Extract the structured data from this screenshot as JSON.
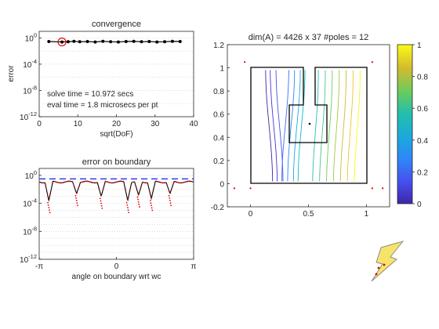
{
  "chart_data": [
    {
      "type": "scatter",
      "title": "convergence",
      "xlabel": "sqrt(DoF)",
      "ylabel": "error",
      "xlim": [
        0,
        40
      ],
      "ylim_log10": [
        -12,
        1
      ],
      "xticks": [
        "0",
        "10",
        "20",
        "30",
        "40"
      ],
      "yticks": [
        "10^0",
        "10^-4",
        "10^-8",
        "10^-12"
      ],
      "grid": "horizontal dotted",
      "x": [
        2.5,
        5.9,
        7.5,
        9.0,
        10.5,
        12.5,
        14.5,
        16.5,
        18.5,
        20.5,
        22.5,
        24.5,
        26.5,
        28.5,
        30.5,
        32.5,
        34.5,
        36.5
      ],
      "y": [
        0.28,
        0.24,
        0.26,
        0.3,
        0.26,
        0.28,
        0.24,
        0.3,
        0.26,
        0.24,
        0.28,
        0.3,
        0.26,
        0.28,
        0.24,
        0.26,
        0.3,
        0.28
      ],
      "highlight_index": 1,
      "annotations": [
        "solve time = 10.972 secs",
        "eval time =  1.8 microsecs per pt"
      ]
    },
    {
      "type": "line",
      "title": "error on boundary",
      "xlabel": "angle on boundary wrt wc",
      "xlim": [
        -3.1416,
        3.1416
      ],
      "ylim_log10": [
        -12,
        1
      ],
      "xticks": [
        "-π",
        "0",
        "π"
      ],
      "yticks": [
        "10^0",
        "10^-4",
        "10^-8",
        "10^-12"
      ],
      "threshold_log10": -0.5,
      "grid": "horizontal dotted",
      "dips": [
        {
          "x": -2.75,
          "min_log10": -3.6
        },
        {
          "x": -1.62,
          "min_log10": -2.6
        },
        {
          "x": -0.62,
          "min_log10": -3.0
        },
        {
          "x": 0.46,
          "min_log10": -3.6
        },
        {
          "x": 0.9,
          "min_log10": -2.8
        },
        {
          "x": 1.42,
          "min_log10": -3.3
        },
        {
          "x": 2.18,
          "min_log10": -2.6
        }
      ]
    },
    {
      "type": "heatmap",
      "title": "dim(A) = 4426 x 37  #poles = 12",
      "xlim": [
        -0.2,
        1.2
      ],
      "ylim": [
        -0.2,
        1.2
      ],
      "xticks": [
        "0",
        "0.5",
        "1"
      ],
      "yticks": [
        "-0.2",
        "0",
        "0.2",
        "0.4",
        "0.6",
        "0.8",
        "1",
        "1.2"
      ],
      "colorbar": {
        "min": 0,
        "max": 1,
        "ticks": [
          "0",
          "0.2",
          "0.4",
          "0.6",
          "0.8",
          "1"
        ]
      },
      "poles": [
        [
          -0.05,
          1.05
        ],
        [
          1.05,
          1.05
        ],
        [
          -0.05,
          -0.05
        ],
        [
          1.05,
          -0.05
        ],
        [
          -0.14,
          -0.04
        ],
        [
          1.14,
          -0.04
        ],
        [
          0.0,
          -0.04
        ],
        [
          0.62,
          0.82
        ],
        [
          0.62,
          0.85
        ],
        [
          0.33,
          0.35
        ],
        [
          0.58,
          0.93
        ],
        [
          0.05,
          0.0
        ]
      ],
      "center": [
        0.5,
        0.5
      ]
    }
  ],
  "colors": {
    "axis": "#262626",
    "grid": "#c8c8c8",
    "highlight_ring": "#e00000",
    "boundary_curve": "#000000",
    "boundary_points": "#e00000",
    "threshold": "#2a3ef0",
    "logo_fill": "#f6e46a",
    "logo_stroke": "#8c8c8c",
    "pole": "#e00000"
  },
  "logo": {
    "name": "lightning-bolt-logo"
  }
}
